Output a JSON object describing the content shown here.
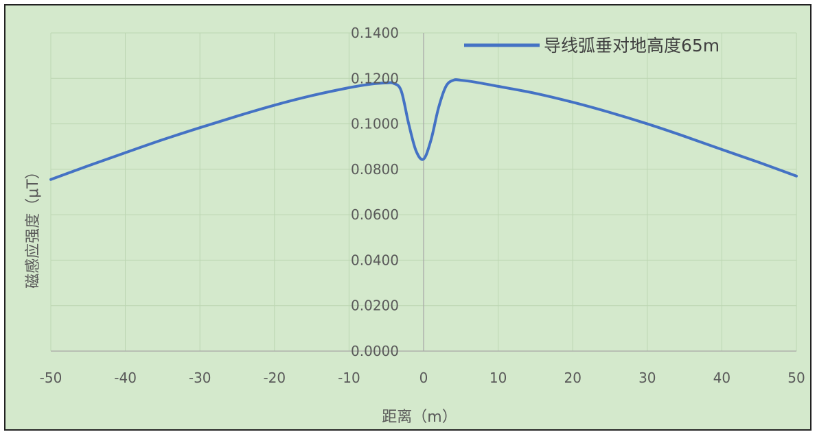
{
  "chart_data": {
    "type": "line",
    "xlabel": "距离（m）",
    "ylabel": "磁感应强度（μT）",
    "xlim": [
      -50,
      50
    ],
    "ylim": [
      0,
      0.14
    ],
    "x_ticks": [
      "-50",
      "-40",
      "-30",
      "-20",
      "-10",
      "0",
      "10",
      "20",
      "30",
      "40",
      "50"
    ],
    "y_ticks": [
      "0.0000",
      "0.0200",
      "0.0400",
      "0.0600",
      "0.0800",
      "0.1000",
      "0.1200",
      "0.1400"
    ],
    "grid": true,
    "legend_position": "top-right",
    "series": [
      {
        "name": "导线弧垂对地高度65m",
        "color": "#4472c4",
        "x": [
          -50,
          -45,
          -40,
          -35,
          -30,
          -25,
          -20,
          -15,
          -10,
          -7,
          -5,
          -4,
          -3,
          -2,
          -1,
          0,
          1,
          2,
          3,
          4,
          5,
          7,
          10,
          15,
          20,
          25,
          30,
          35,
          40,
          45,
          50
        ],
        "y": [
          0.0755,
          0.0815,
          0.0873,
          0.093,
          0.0983,
          0.1034,
          0.1082,
          0.1124,
          0.1159,
          0.1175,
          0.118,
          0.1178,
          0.1145,
          0.1,
          0.088,
          0.0845,
          0.093,
          0.107,
          0.1165,
          0.1192,
          0.1192,
          0.1183,
          0.1165,
          0.1134,
          0.1095,
          0.105,
          0.1,
          0.0945,
          0.0887,
          0.083,
          0.077
        ]
      }
    ]
  }
}
